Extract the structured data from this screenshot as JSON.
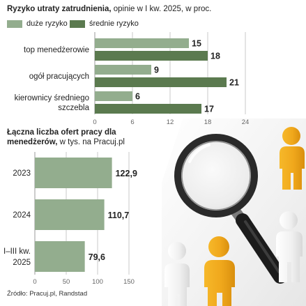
{
  "colors": {
    "light": "#93ad8e",
    "dark": "#5b7a4f",
    "grid": "#c8c8c8",
    "axis": "#9a9a9a",
    "text": "#222222",
    "tick": "#666666"
  },
  "chart1": {
    "title_bold": "Ryzyko utraty zatrudnienia,",
    "title_rest": " opinie w I kw. 2025, w proc.",
    "legend": [
      {
        "label": "duże ryzyko",
        "color": "#93ad8e"
      },
      {
        "label": "średnie ryzyko",
        "color": "#5b7a4f"
      }
    ]
  },
  "chart2": {
    "title_bold": "Łączna liczba ofert pracy dla menedżerów,",
    "title_rest": " w tys. na Pracuj.pl"
  },
  "source": "Źródło: Pracuj.pl, Randstad",
  "chart_data": [
    {
      "type": "bar",
      "orientation": "horizontal",
      "categories": [
        [
          "top menedżerowie"
        ],
        [
          "ogół pracujących"
        ],
        [
          "kierownicy średniego",
          "szczebla"
        ]
      ],
      "series": [
        {
          "name": "duże ryzyko",
          "values": [
            15,
            9,
            6
          ]
        },
        {
          "name": "średnie ryzyko",
          "values": [
            18,
            21,
            17
          ]
        }
      ],
      "xlim": [
        0,
        24
      ],
      "xticks": [
        0,
        6,
        12,
        18,
        24
      ],
      "grid": true,
      "legend_position": "top-left"
    },
    {
      "type": "bar",
      "orientation": "horizontal",
      "categories": [
        [
          "2023"
        ],
        [
          "2024"
        ],
        [
          "I–III kw.",
          "2025"
        ]
      ],
      "values": [
        122.9,
        110.7,
        79.6
      ],
      "value_labels": [
        "122,9",
        "110,7",
        "79,6"
      ],
      "xlim": [
        0,
        150
      ],
      "xticks": [
        0,
        50,
        100,
        150
      ],
      "grid": true
    }
  ]
}
